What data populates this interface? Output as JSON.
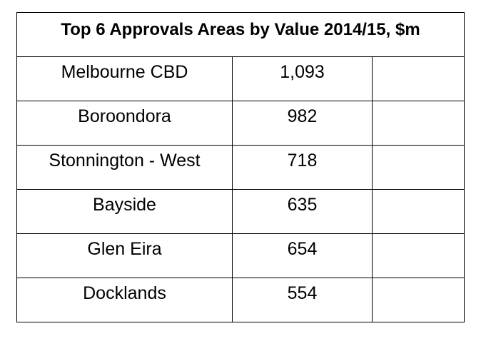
{
  "table": {
    "title": "Top 6 Approvals Areas by Value 2014/15, $m",
    "rows": [
      {
        "area": "Melbourne CBD",
        "value": "1,093",
        "extra": ""
      },
      {
        "area": "Boroondora",
        "value": "982",
        "extra": ""
      },
      {
        "area": "Stonnington - West",
        "value": "718",
        "extra": ""
      },
      {
        "area": "Bayside",
        "value": "635",
        "extra": ""
      },
      {
        "area": "Glen Eira",
        "value": "654",
        "extra": ""
      },
      {
        "area": "Docklands",
        "value": "554",
        "extra": ""
      }
    ]
  }
}
